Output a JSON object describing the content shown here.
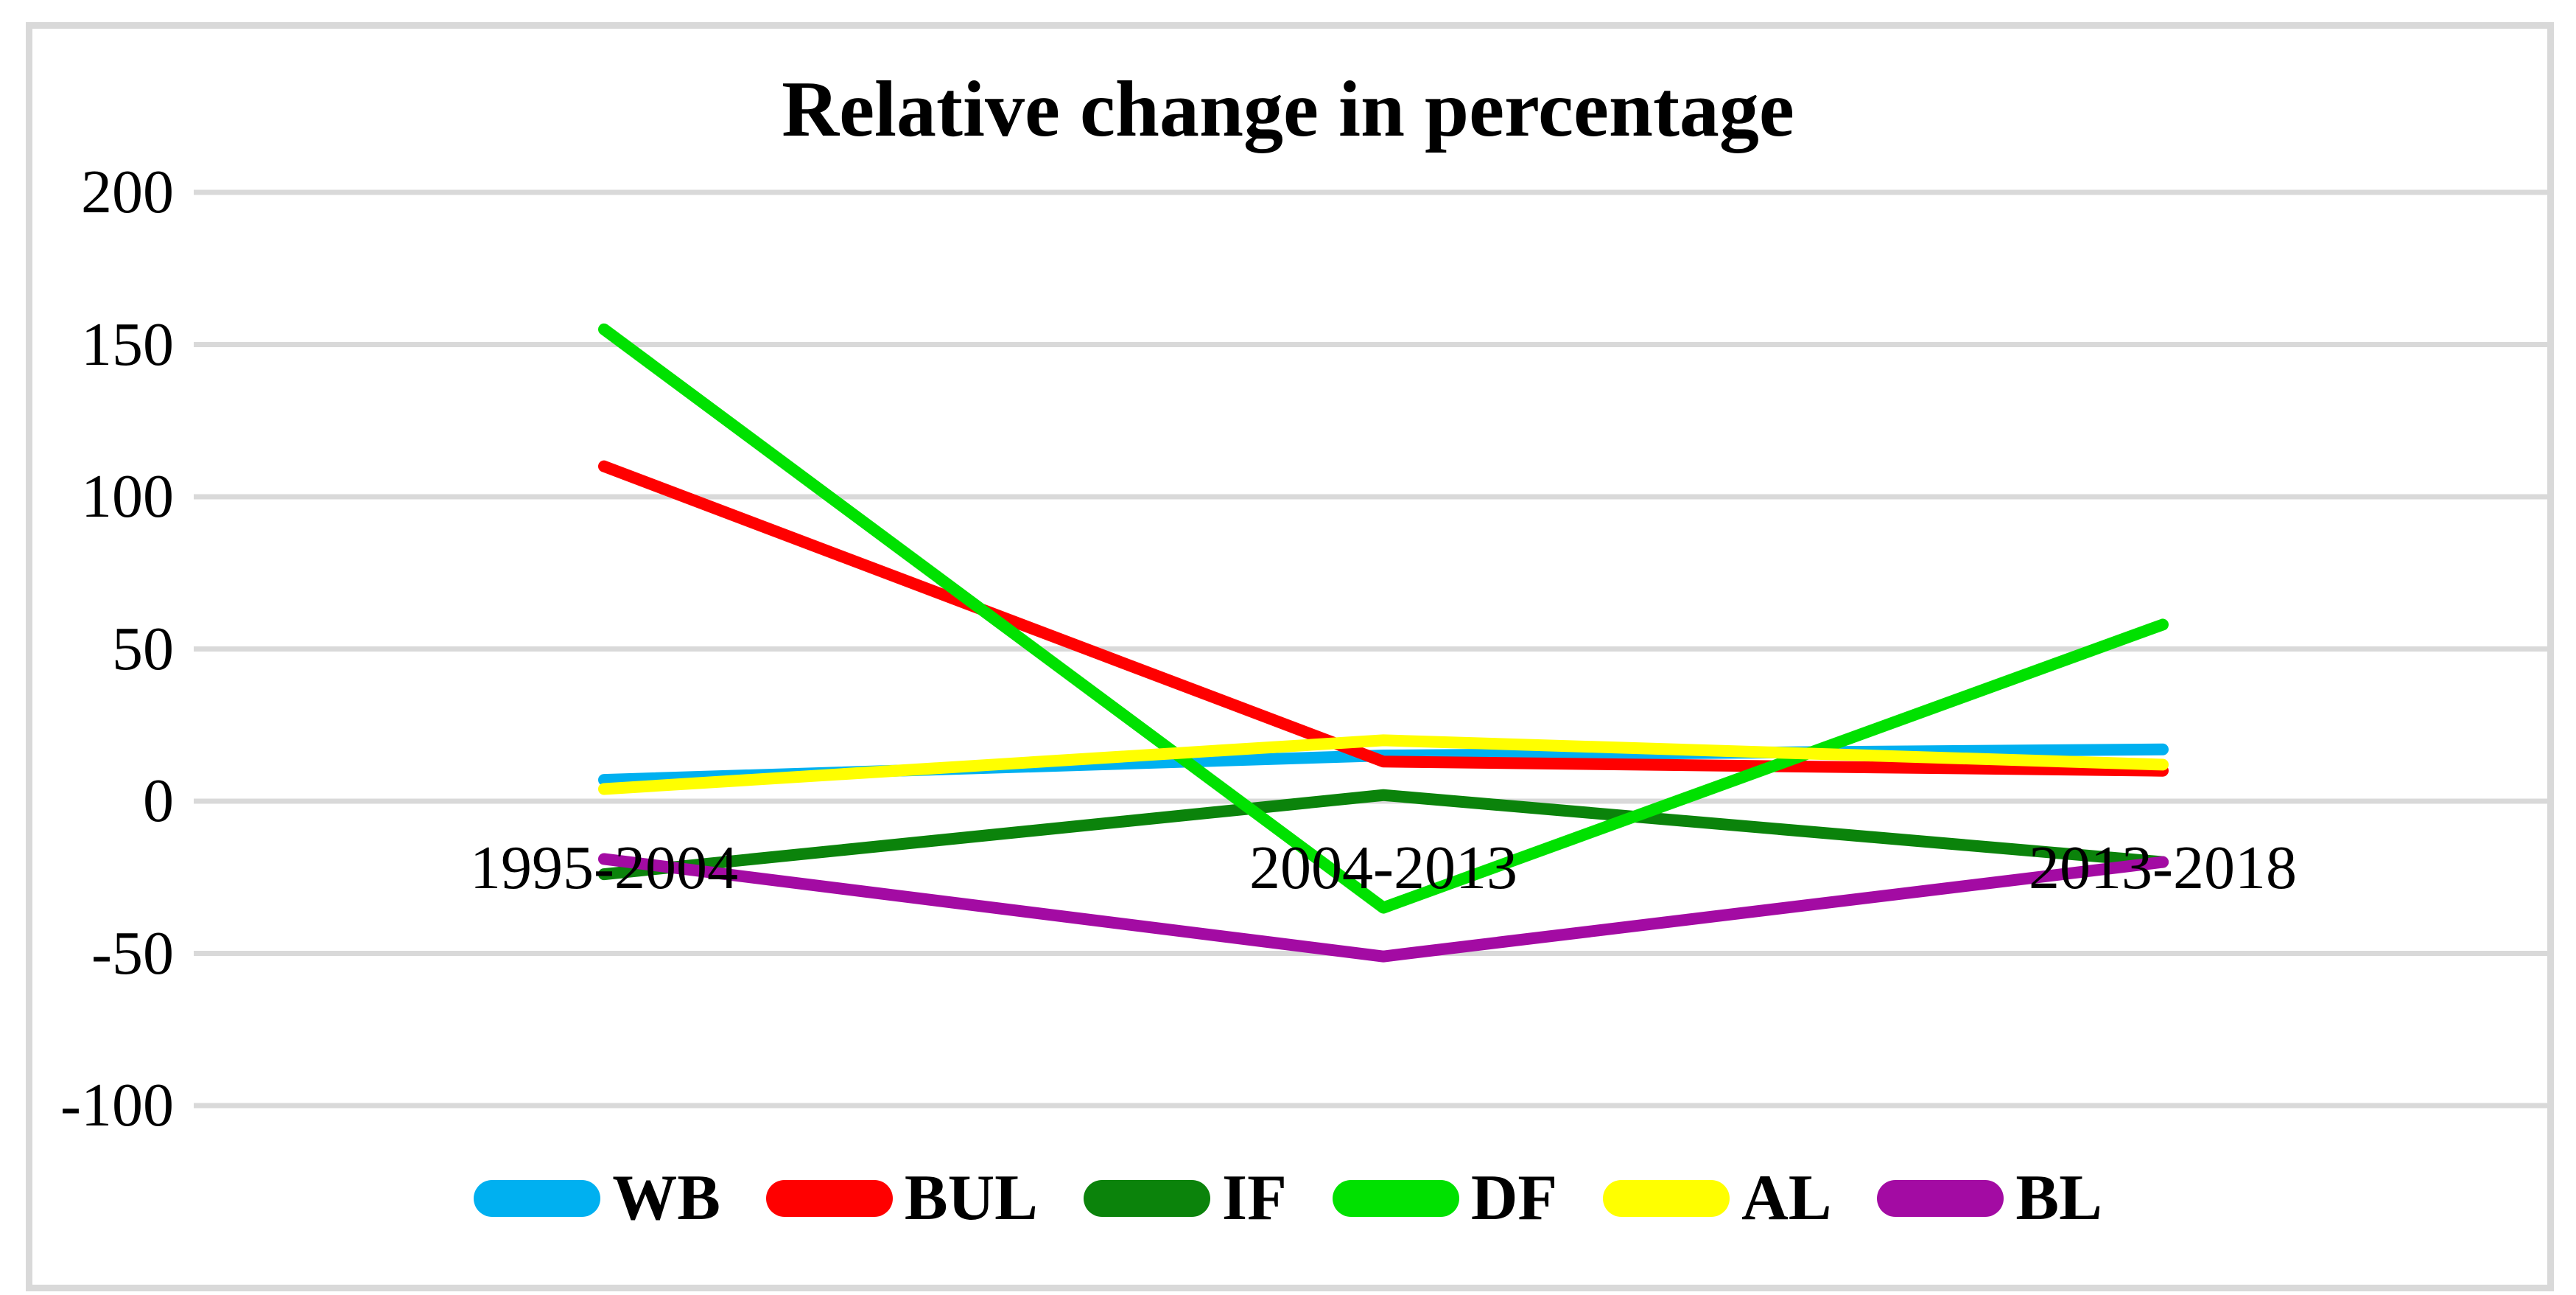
{
  "chart_data": {
    "type": "line",
    "title": "Relative change in percentage",
    "categories": [
      "1995-2004",
      "2004-2013",
      "2013-2018"
    ],
    "series": [
      {
        "name": "WB",
        "color": "#00B0F0",
        "values": [
          7,
          15,
          17
        ]
      },
      {
        "name": "BUL",
        "color": "#FF0000",
        "values": [
          110,
          13,
          10
        ]
      },
      {
        "name": "IF",
        "color": "#0B830B",
        "values": [
          -24,
          2,
          -20
        ]
      },
      {
        "name": "DF",
        "color": "#00E100",
        "values": [
          155,
          -35,
          58
        ]
      },
      {
        "name": "AL",
        "color": "#FFFF00",
        "values": [
          4,
          20,
          12
        ]
      },
      {
        "name": "BL",
        "color": "#A30BA3",
        "values": [
          -19,
          -51,
          -20
        ]
      }
    ],
    "y_ticks": [
      200,
      150,
      100,
      50,
      0,
      -50,
      -100
    ],
    "ylim": [
      -100,
      200
    ],
    "xlabel": "",
    "ylabel": "",
    "grid": "horizontal",
    "grid_color": "#D9D9D9",
    "frame_border_color": "#D9D9D9",
    "legend_position": "bottom",
    "legend_order": [
      "WB",
      "BUL",
      "IF",
      "DF",
      "AL",
      "BL"
    ]
  }
}
